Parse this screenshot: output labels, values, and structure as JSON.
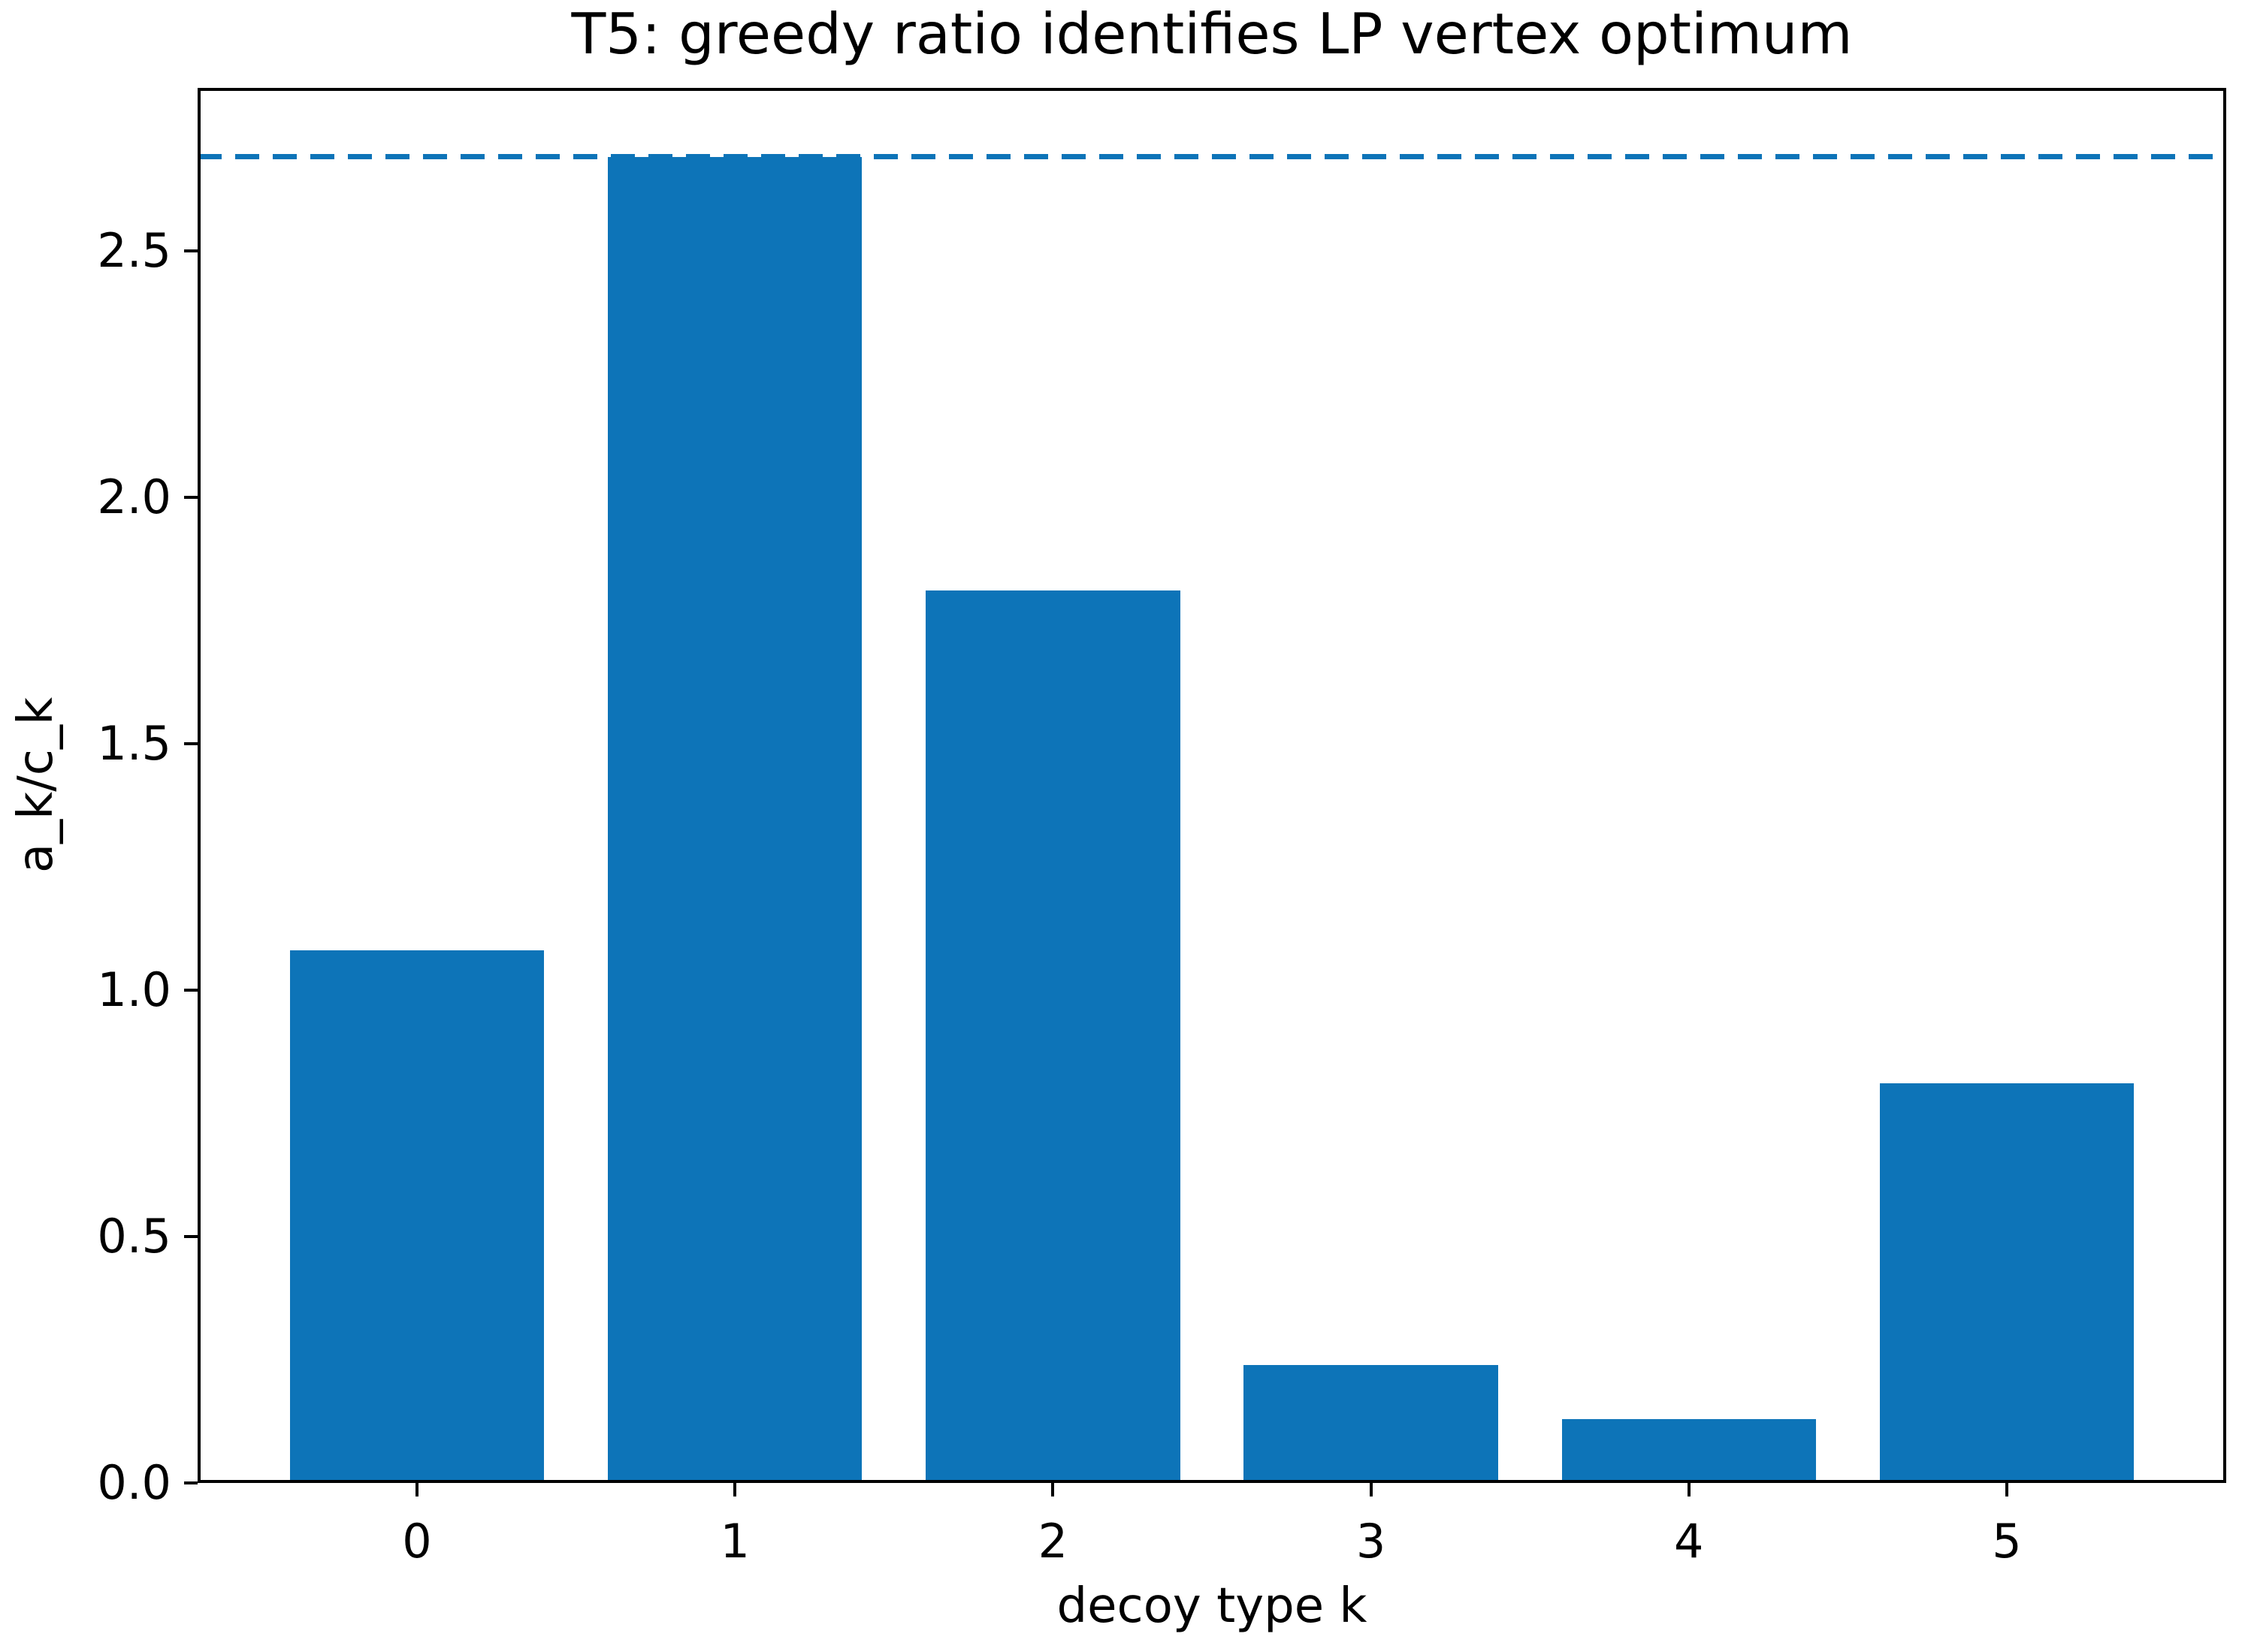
{
  "chart_data": {
    "type": "bar",
    "title": "T5: greedy ratio identifies LP vertex optimum",
    "xlabel": "decoy type k",
    "ylabel": "a_k/c_k",
    "categories": [
      "0",
      "1",
      "2",
      "3",
      "4",
      "5"
    ],
    "values": [
      1.08,
      2.69,
      1.81,
      0.24,
      0.13,
      0.81
    ],
    "reference_line_y": 2.69,
    "reference_line_style": "dashed",
    "xlim": [
      -0.69,
      5.69
    ],
    "ylim": [
      0,
      2.83
    ],
    "yticks": {
      "labels": [
        "0.0",
        "0.5",
        "1.0",
        "1.5",
        "2.0",
        "2.5"
      ],
      "values": [
        0,
        0.5,
        1.0,
        1.5,
        2.0,
        2.5
      ]
    },
    "bar_width_fraction": 0.8,
    "bar_color": "#0d74b8",
    "reference_line_color": "#0d74b8",
    "axis_color": "#000000",
    "text_color": "#000000",
    "background_color": "#ffffff",
    "grid": false,
    "legend_position": "none"
  }
}
